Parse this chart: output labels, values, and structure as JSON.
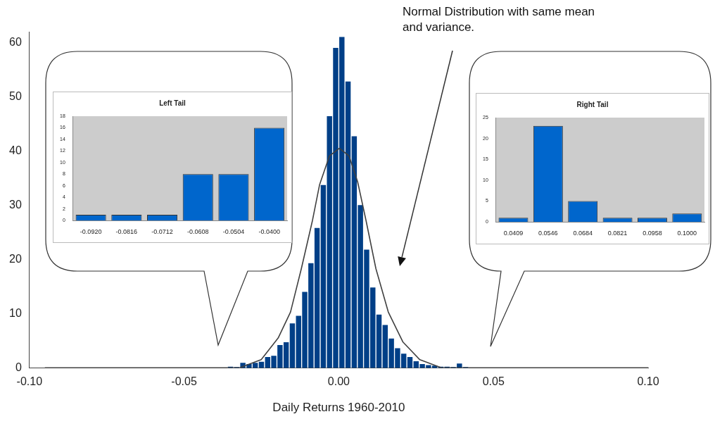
{
  "chart_data": [
    {
      "type": "histogram",
      "xlabel": "Daily Returns 1960-2010",
      "bins": [
        -0.036,
        -0.034,
        -0.032,
        -0.03,
        -0.028,
        -0.026,
        -0.024,
        -0.022,
        -0.02,
        -0.018,
        -0.016,
        -0.014,
        -0.012,
        -0.01,
        -0.008,
        -0.006,
        -0.004,
        -0.002,
        0,
        0.002,
        0.004,
        0.006,
        0.008,
        0.01,
        0.012,
        0.014,
        0.016,
        0.018,
        0.02,
        0.022,
        0.024,
        0.026,
        0.028,
        0.03,
        0.032,
        0.034,
        0.036,
        0.038,
        0.04,
        0.042
      ],
      "series": [
        {
          "type": "histogram",
          "color": "#003f87",
          "values": [
            0.3,
            0.2,
            1.0,
            0.8,
            1.0,
            1.2,
            2.1,
            2.3,
            4.3,
            4.8,
            8.3,
            9.7,
            14.1,
            19.4,
            25.9,
            33.8,
            46.5,
            59.1,
            61.1,
            52.9,
            42.8,
            30.1,
            21.9,
            14.9,
            9.9,
            8.0,
            5.5,
            3.7,
            2.7,
            2.1,
            1.3,
            0.8,
            0.6,
            0.5,
            0.3,
            0.3,
            0.2,
            0.9,
            0.2
          ]
        },
        {
          "type": "line",
          "color": "#404040",
          "x": [
            -0.095,
            -0.0322,
            -0.0251,
            -0.0196,
            -0.0156,
            -0.0121,
            -0.0085,
            -0.0062,
            -0.003,
            0.0002,
            0.0033,
            0.0061,
            0.0088,
            0.012,
            0.016,
            0.0207,
            0.0262,
            0.0333,
            0.1
          ],
          "values": [
            0,
            0,
            1.5,
            5.5,
            10.3,
            18.3,
            27.2,
            33.8,
            39.1,
            40.5,
            39.1,
            34.3,
            27.2,
            18.3,
            10.3,
            4.8,
            1.5,
            0,
            0
          ]
        }
      ],
      "xlim": [
        -0.1,
        0.1
      ],
      "xticks": [
        {
          "value": -0.1,
          "label": "-0.10"
        },
        -0.05,
        {
          "value": 0,
          "label": "0.00"
        },
        0.05,
        {
          "value": 0.1,
          "label": "0.10"
        }
      ],
      "ylim": [
        0,
        62
      ],
      "yticks": [
        0,
        10,
        20,
        30,
        40,
        50,
        60
      ],
      "marker": "none",
      "annotations": [
        "Normal Distribution with same mean and variance."
      ]
    },
    {
      "type": "bar",
      "title": "Left Tail",
      "categories": [
        "-0.0920",
        "-0.0816",
        "-0.0712",
        "-0.0608",
        "-0.0504",
        "-0.0400"
      ],
      "values": [
        1,
        1,
        1,
        8,
        8,
        16
      ],
      "color": "#0066cc",
      "ylim": [
        0,
        18
      ],
      "yticks": [
        0,
        2,
        4,
        6,
        8,
        10,
        12,
        14,
        16,
        18
      ]
    },
    {
      "type": "bar",
      "title": "Right Tail",
      "categories": [
        "0.0409",
        "0.0546",
        "0.0684",
        "0.0821",
        "0.0958",
        "0.1000"
      ],
      "values": [
        1,
        23,
        5,
        1,
        1,
        2
      ],
      "color": "#0066cc",
      "ylim": [
        0,
        25
      ],
      "yticks": [
        0,
        5,
        10,
        15,
        20,
        25
      ]
    }
  ]
}
